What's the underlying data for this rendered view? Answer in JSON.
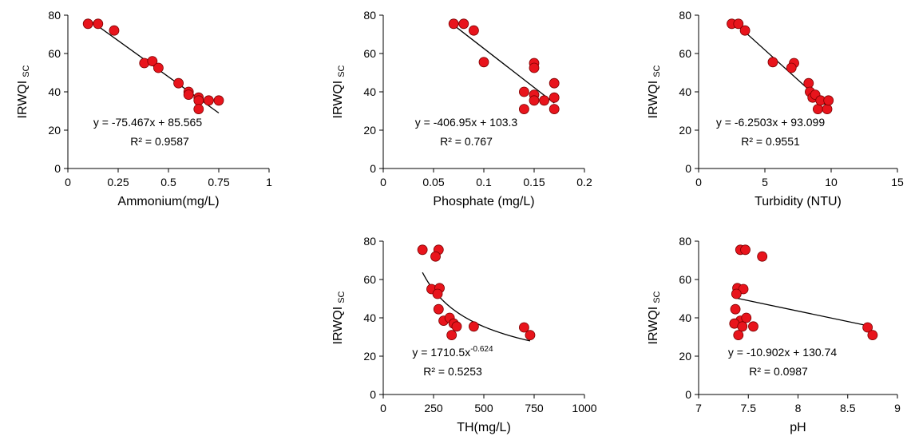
{
  "chart_data": [
    {
      "type": "scatter",
      "xlabel": "Ammonium(mg/L)",
      "ylabel": "IRWQI",
      "ylabel_sub": "SC",
      "color": "#e8141c",
      "x": [
        0.1,
        0.15,
        0.23,
        0.38,
        0.42,
        0.45,
        0.55,
        0.6,
        0.6,
        0.65,
        0.65,
        0.65,
        0.7,
        0.75
      ],
      "y": [
        75.5,
        75.5,
        72,
        55,
        56,
        52.5,
        44.5,
        40,
        38.5,
        37,
        35.5,
        31,
        35.5,
        35.5
      ],
      "xlim": [
        0,
        1
      ],
      "xticks": [
        0,
        0.25,
        0.5,
        0.75,
        1
      ],
      "ylim": [
        0,
        80
      ],
      "yticks": [
        0,
        20,
        40,
        60,
        80
      ],
      "trendline": {
        "kind": "linear",
        "slope": -75.467,
        "intercept": 85.565,
        "label": "y = -75.467x + 85.565",
        "r2": "R² = 0.9587"
      }
    },
    {
      "type": "scatter",
      "xlabel": "Phosphate (mg/L)",
      "ylabel": "IRWQI",
      "ylabel_sub": "SC",
      "color": "#e8141c",
      "x": [
        0.07,
        0.08,
        0.09,
        0.1,
        0.15,
        0.15,
        0.15,
        0.15,
        0.14,
        0.14,
        0.16,
        0.17,
        0.17,
        0.17
      ],
      "y": [
        75.5,
        75.5,
        72,
        55.5,
        55,
        52.5,
        38.5,
        35.5,
        40,
        31,
        35.5,
        44.5,
        37,
        31
      ],
      "xlim": [
        0,
        0.2
      ],
      "xticks": [
        0,
        0.05,
        0.1,
        0.15,
        0.2
      ],
      "ylim": [
        0,
        80
      ],
      "yticks": [
        0,
        20,
        40,
        60,
        80
      ],
      "trendline": {
        "kind": "linear",
        "slope": -406.95,
        "intercept": 103.3,
        "label": "y = -406.95x + 103.3",
        "r2": "R² = 0.767"
      }
    },
    {
      "type": "scatter",
      "xlabel": "Turbidity (NTU)",
      "ylabel": "IRWQI",
      "ylabel_sub": "SC",
      "color": "#e8141c",
      "x": [
        2.5,
        3,
        3.5,
        5.6,
        7.2,
        7,
        8.3,
        8.4,
        8.6,
        8.8,
        9,
        9.2,
        9.7,
        9.8
      ],
      "y": [
        75.5,
        75.5,
        72,
        55.5,
        55,
        52.5,
        44.5,
        40,
        37,
        38.5,
        31,
        35.5,
        31,
        35.5
      ],
      "xlim": [
        0,
        15
      ],
      "xticks": [
        0,
        5,
        10,
        15
      ],
      "ylim": [
        0,
        80
      ],
      "yticks": [
        0,
        20,
        40,
        60,
        80
      ],
      "trendline": {
        "kind": "linear",
        "slope": -6.2503,
        "intercept": 93.099,
        "label": "y = -6.2503x + 93.099",
        "r2": "R² = 0.9551"
      }
    },
    {
      "type": "scatter",
      "xlabel": "TH(mg/L)",
      "ylabel": "IRWQI",
      "ylabel_sub": "SC",
      "color": "#e8141c",
      "x": [
        195,
        275,
        260,
        240,
        280,
        270,
        275,
        300,
        330,
        340,
        350,
        365,
        450,
        700,
        730
      ],
      "y": [
        75.5,
        75.5,
        72,
        55,
        55.5,
        52.5,
        44.5,
        38.5,
        40,
        31,
        37,
        35.5,
        35.5,
        35,
        31
      ],
      "xlim": [
        0,
        1000
      ],
      "xticks": [
        0,
        250,
        500,
        750,
        1000
      ],
      "ylim": [
        0,
        80
      ],
      "yticks": [
        0,
        20,
        40,
        60,
        80
      ],
      "trendline": {
        "kind": "power",
        "coef": 1710.5,
        "exponent": -0.624,
        "label": "y = 1710.5x",
        "label_sup": "-0.624",
        "r2": "R² = 0.5253"
      }
    },
    {
      "type": "scatter",
      "xlabel": "pH",
      "ylabel": "IRWQI",
      "ylabel_sub": "SC",
      "color": "#e8141c",
      "x": [
        7.42,
        7.47,
        7.64,
        7.39,
        7.45,
        7.38,
        7.37,
        7.42,
        7.48,
        7.36,
        7.44,
        7.55,
        7.4,
        8.7,
        8.75
      ],
      "y": [
        75.5,
        75.5,
        72,
        55.5,
        55,
        52.5,
        44.5,
        38.5,
        40,
        37,
        35.5,
        35.5,
        31,
        35,
        31
      ],
      "xlim": [
        7,
        9
      ],
      "xticks": [
        7,
        7.5,
        8,
        8.5,
        9
      ],
      "ylim": [
        0,
        80
      ],
      "yticks": [
        0,
        20,
        40,
        60,
        80
      ],
      "trendline": {
        "kind": "linear",
        "slope": -10.902,
        "intercept": 130.74,
        "label": "y = -10.902x + 130.74",
        "r2": "R² = 0.0987"
      }
    }
  ]
}
